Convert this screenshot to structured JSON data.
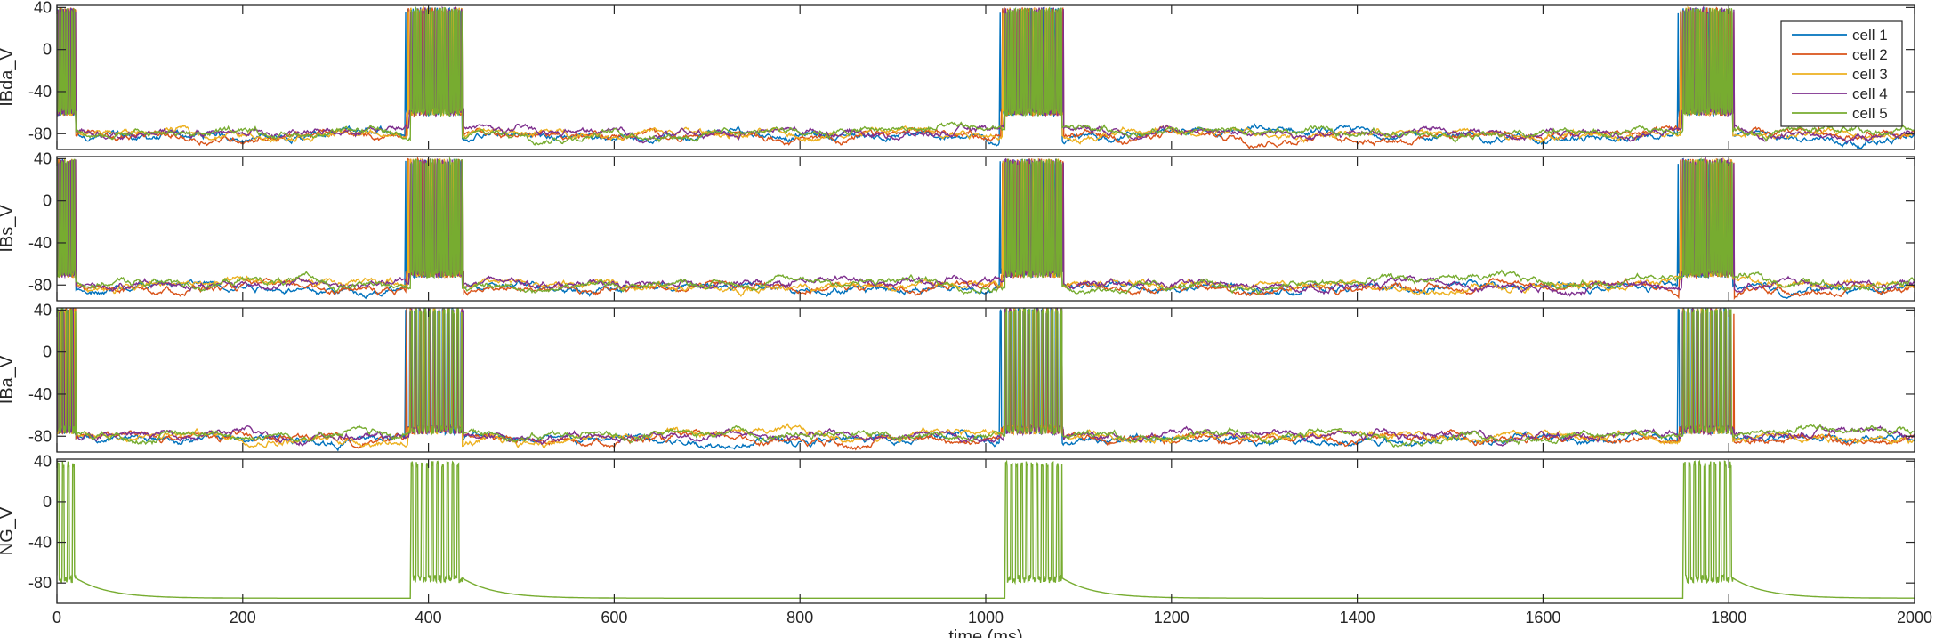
{
  "chart_data": {
    "type": "line",
    "title": "",
    "xlabel": "time (ms)",
    "xlim": [
      0,
      2000
    ],
    "xticks": [
      0,
      200,
      400,
      600,
      800,
      1000,
      1200,
      1400,
      1600,
      1800,
      2000
    ],
    "legend": {
      "placement": "top-right of first panel",
      "entries": [
        "cell 1",
        "cell 2",
        "cell 3",
        "cell 4",
        "cell 5"
      ]
    },
    "series_colors": [
      "#0072BD",
      "#D95319",
      "#EDB120",
      "#7E2F8E",
      "#77AC30"
    ],
    "burst_windows_ms": [
      [
        0,
        20
      ],
      [
        378,
        436
      ],
      [
        1018,
        1082
      ],
      [
        1748,
        1804
      ]
    ],
    "panels": [
      {
        "ylabel": "IBda_V",
        "ylim": [
          -95,
          42
        ],
        "yticks": [
          -80,
          -40,
          0,
          40
        ],
        "baseline_mV": -80,
        "burst_plateau_mV": -55,
        "spike_peak_mV": 40,
        "cells": [
          "cell 1",
          "cell 2",
          "cell 3",
          "cell 4",
          "cell 5"
        ]
      },
      {
        "ylabel": "IBs_V",
        "ylim": [
          -95,
          42
        ],
        "yticks": [
          -80,
          -40,
          0,
          40
        ],
        "baseline_mV": -80,
        "burst_plateau_mV": -65,
        "spike_peak_mV": 40,
        "cells": [
          "cell 1",
          "cell 2",
          "cell 3",
          "cell 4",
          "cell 5"
        ]
      },
      {
        "ylabel": "IBa_V",
        "ylim": [
          -95,
          42
        ],
        "yticks": [
          -80,
          -40,
          0,
          40
        ],
        "baseline_mV": -80,
        "burst_plateau_mV": -70,
        "spike_peak_mV": 42,
        "cells": [
          "cell 1",
          "cell 2",
          "cell 3",
          "cell 4",
          "cell 5"
        ]
      },
      {
        "ylabel": "NG_V",
        "ylim": [
          -100,
          42
        ],
        "yticks": [
          -80,
          -40,
          0,
          40
        ],
        "baseline_mV": -95,
        "burst_plateau_mV": -72,
        "spike_peak_mV": 40,
        "after_burst_mV": -75,
        "cells": [
          "cell 5"
        ]
      }
    ]
  }
}
